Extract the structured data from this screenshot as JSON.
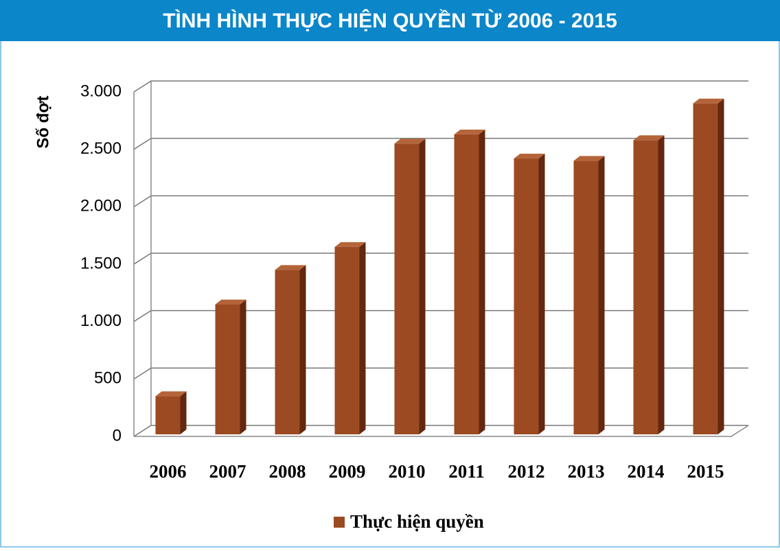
{
  "chart_data": {
    "type": "bar3d",
    "title": "TÌNH HÌNH THỰC HIỆN QUYỀN TỪ 2006 - 2015",
    "ylabel": "Số đợt",
    "categories": [
      "2006",
      "2007",
      "2008",
      "2009",
      "2010",
      "2011",
      "2012",
      "2013",
      "2014",
      "2015"
    ],
    "series": [
      {
        "name": "Thực hiện quyền",
        "color": "#9b4a22",
        "values": [
          350,
          1150,
          1450,
          1650,
          2550,
          2630,
          2420,
          2400,
          2580,
          2900
        ]
      }
    ],
    "ylim": [
      0,
      3000
    ],
    "yticks": [
      0,
      500,
      {
        "value": 1000,
        "label": "1.000"
      },
      {
        "value": 1500,
        "label": "1.500"
      },
      {
        "value": 2000,
        "label": "2.000"
      },
      {
        "value": 2500,
        "label": "2.500"
      },
      {
        "value": 3000,
        "label": "3.000"
      }
    ],
    "grid": true,
    "legend": "bottom"
  }
}
